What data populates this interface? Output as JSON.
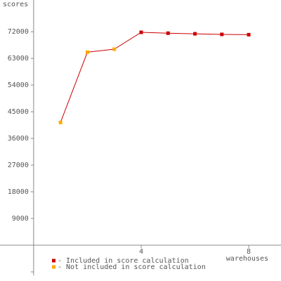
{
  "chart_data": {
    "type": "line",
    "y_label": "scores",
    "x_label": "warehouses",
    "x": [
      1,
      2,
      3,
      4,
      5,
      6,
      7,
      8
    ],
    "series": [
      {
        "name": "- Included in score calculation",
        "color": "#cc0000",
        "values": [
          null,
          null,
          null,
          71800,
          71500,
          71300,
          71100,
          71000
        ]
      },
      {
        "name": "- Not included in score calculation",
        "color": "#ffaa00",
        "values": [
          41400,
          65100,
          66100,
          null,
          null,
          null,
          null,
          null
        ]
      }
    ],
    "line_color": "#cc0000",
    "xlim": [
      -1.25,
      9.2
    ],
    "xticks": [
      4,
      8
    ],
    "ylim": [
      -10200,
      82700
    ],
    "yticks": [
      9000,
      18000,
      27000,
      36000,
      45000,
      54000,
      63000,
      72000
    ],
    "grid": false
  }
}
